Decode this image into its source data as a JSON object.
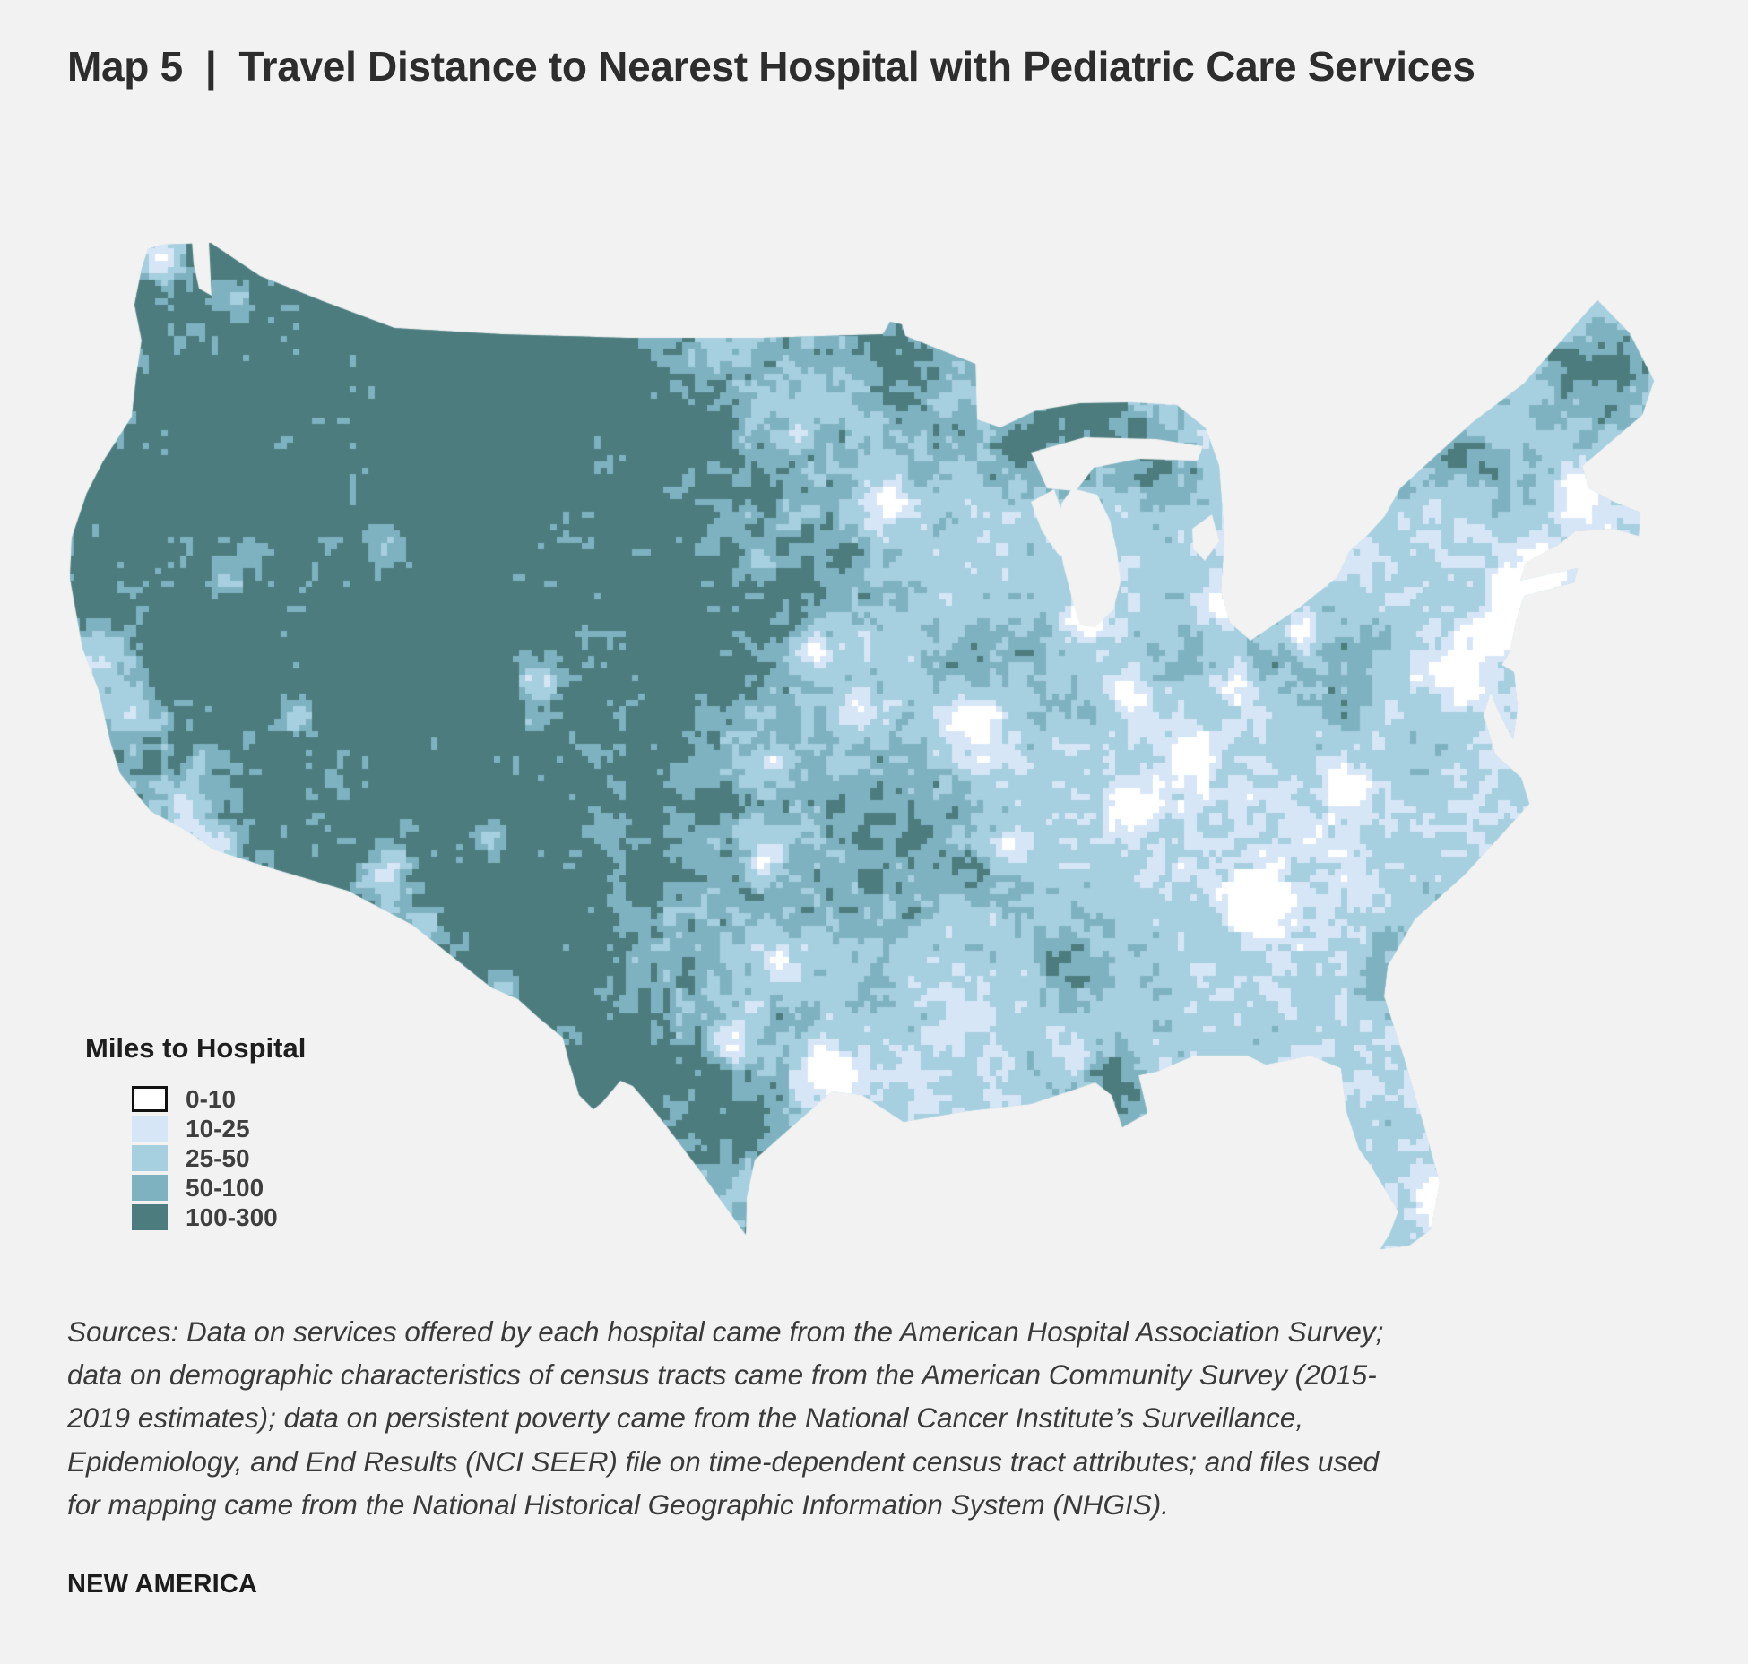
{
  "header": {
    "title": "Map 5  |  Travel Distance to Nearest Hospital with Pediatric Care Services"
  },
  "map": {
    "background": "#f2f2f2",
    "water": "#f2f2f2",
    "palette": [
      "#ffffff",
      "#d7e6f7",
      "#a6cfdf",
      "#7fb2c0",
      "#4d7c7e"
    ],
    "legend": {
      "title": "Miles to Hospital",
      "items": [
        {
          "label": "0-10",
          "color": "#ffffff"
        },
        {
          "label": "10-25",
          "color": "#d7e6f7"
        },
        {
          "label": "25-50",
          "color": "#a6cfdf"
        },
        {
          "label": "50-100",
          "color": "#7fb2c0"
        },
        {
          "label": "100-300",
          "color": "#4d7c7e"
        }
      ]
    }
  },
  "chart_data": {
    "type": "heatmap",
    "title": "Travel Distance to Nearest Hospital with Pediatric Care Services",
    "legend_title": "Miles to Hospital",
    "classes": [
      "0-10",
      "10-25",
      "25-50",
      "50-100",
      "100-300"
    ],
    "class_colors": [
      "#ffffff",
      "#d7e6f7",
      "#a6cfdf",
      "#7fb2c0",
      "#4d7c7e"
    ],
    "geography": "Continental United States census tracts",
    "pattern": "Western mountain and desert tracts mostly 100-300 miles (dark teal); Great Plains mixed 50-300; Midwest, South and East Coast mostly 10-50 miles (light blues) with white 0-10 urban cores; isolated 100-300 pockets in northern Minnesota, upper Michigan, northern Maine, Adirondacks, Appalachia, Mississippi Delta, Big Bend and south Texas"
  },
  "footer": {
    "sources": "Sources: Data on services offered by each hospital came from the American Hospital Association Survey; data on demographic characteristics of census tracts came from the American Community Survey (2015-2019 estimates); data on persistent poverty came from the National Cancer Institute’s Surveillance, Epidemiology, and End Results (NCI SEER) file on time-dependent census tract attributes; and files used for mapping came from the National Historical Geographic Information System (NHGIS).",
    "brand": "NEW AMERICA"
  }
}
